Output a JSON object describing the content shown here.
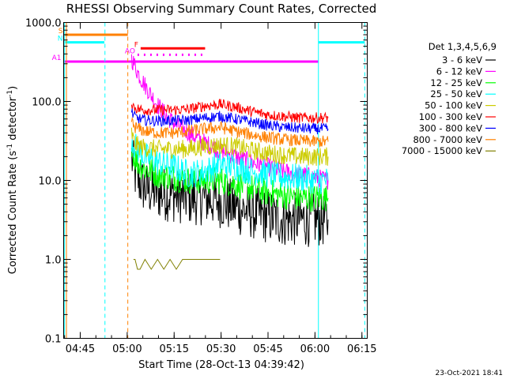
{
  "chart_data": {
    "type": "line",
    "title": "RHESSI Observing Summary Count Rates, Corrected",
    "xlabel": "Start Time (28-Oct-13 04:39:42)",
    "ylabel": "Corrected Count Rate (s",
    "ylabel_sup1": "-1",
    "ylabel_mid": " detector",
    "ylabel_sup2": "-1",
    "ylabel_end": ")",
    "footer": "23-Oct-2021 18:41",
    "x_unit": "minutes after 04:39:42",
    "xlim": [
      0,
      97
    ],
    "ylim": [
      0.1,
      1000
    ],
    "yscale": "log",
    "x_ticks": [
      {
        "x": 5.3,
        "label": "04:45"
      },
      {
        "x": 20.3,
        "label": "05:00"
      },
      {
        "x": 35.3,
        "label": "05:15"
      },
      {
        "x": 50.3,
        "label": "05:30"
      },
      {
        "x": 65.3,
        "label": "05:45"
      },
      {
        "x": 80.3,
        "label": "06:00"
      },
      {
        "x": 95.3,
        "label": "06:15"
      }
    ],
    "y_ticks": [
      {
        "y": 1000,
        "label": "1000.0"
      },
      {
        "y": 100,
        "label": "100.0"
      },
      {
        "y": 10,
        "label": "10.0"
      },
      {
        "y": 1,
        "label": "1.0"
      },
      {
        "y": 0.1,
        "label": "0.1"
      }
    ],
    "legend": {
      "header": "Det 1,3,4,5,6,9",
      "placement": "right",
      "entries": [
        {
          "label": "3 - 6 keV",
          "color": "#000000"
        },
        {
          "label": "6 - 12 keV",
          "color": "#ff00ff"
        },
        {
          "label": "12 - 25 keV",
          "color": "#00ff00"
        },
        {
          "label": "25 - 50 keV",
          "color": "#00ffff"
        },
        {
          "label": "50 - 100 keV",
          "color": "#cccc00"
        },
        {
          "label": "100 - 300 keV",
          "color": "#ff0000"
        },
        {
          "label": "300 - 800 keV",
          "color": "#0000ff"
        },
        {
          "label": "800 - 7000 keV",
          "color": "#ff8000"
        },
        {
          "label": "7000 - 15000 keV",
          "color": "#808000"
        }
      ]
    },
    "series": [
      {
        "name": "3 - 6 keV",
        "color": "#000000",
        "x": [
          21.7,
          22.5,
          24,
          26,
          30,
          35,
          40,
          45,
          50,
          55,
          60,
          65,
          70,
          75,
          80,
          84.5
        ],
        "y": [
          20,
          13,
          10,
          8,
          7,
          6.5,
          6,
          6,
          5.5,
          4.5,
          4,
          3.5,
          3.2,
          3.2,
          3.2,
          3.2
        ]
      },
      {
        "name": "6 - 12 keV",
        "color": "#ff00ff",
        "x": [
          21.7,
          22.5,
          24,
          26,
          28,
          30,
          33,
          36,
          40,
          45,
          50,
          55,
          60,
          65,
          70,
          75,
          80,
          84.5
        ],
        "y": [
          350,
          300,
          220,
          160,
          120,
          90,
          65,
          50,
          40,
          30,
          24,
          20,
          17,
          15,
          13,
          12,
          11,
          10
        ]
      },
      {
        "name": "12 - 25 keV",
        "color": "#00ff00",
        "x": [
          21.7,
          22.5,
          24,
          26,
          30,
          35,
          40,
          45,
          50,
          55,
          60,
          65,
          70,
          75,
          80,
          84.5
        ],
        "y": [
          30,
          20,
          16,
          14,
          12,
          11,
          10,
          10,
          10,
          9,
          8,
          7,
          6.5,
          6,
          6,
          6
        ]
      },
      {
        "name": "25 - 50 keV",
        "color": "#00ffff",
        "x": [
          21.7,
          22.5,
          24,
          26,
          30,
          35,
          40,
          45,
          50,
          55,
          60,
          65,
          70,
          75,
          80,
          84.5
        ],
        "y": [
          35,
          28,
          24,
          20,
          17,
          15,
          12,
          13,
          16,
          15,
          13,
          12,
          11,
          11,
          10,
          10
        ]
      },
      {
        "name": "50 - 100 keV",
        "color": "#cccc00",
        "x": [
          21.7,
          22.5,
          24,
          26,
          30,
          35,
          40,
          45,
          50,
          55,
          60,
          65,
          70,
          75,
          80,
          84.5
        ],
        "y": [
          40,
          30,
          27,
          26,
          25,
          25,
          25,
          27,
          28,
          27,
          24,
          22,
          21,
          20,
          20,
          20
        ]
      },
      {
        "name": "100 - 300 keV",
        "color": "#ff0000",
        "x": [
          21.7,
          22.5,
          24,
          26,
          30,
          35,
          40,
          45,
          50,
          55,
          60,
          65,
          70,
          75,
          80,
          84.5
        ],
        "y": [
          95,
          85,
          80,
          78,
          78,
          78,
          80,
          88,
          92,
          85,
          75,
          68,
          65,
          62,
          62,
          62
        ]
      },
      {
        "name": "300 - 800 keV",
        "color": "#0000ff",
        "x": [
          21.7,
          22.5,
          24,
          26,
          30,
          35,
          40,
          45,
          50,
          55,
          60,
          65,
          70,
          75,
          80,
          84.5
        ],
        "y": [
          75,
          65,
          60,
          58,
          57,
          57,
          58,
          62,
          65,
          60,
          55,
          50,
          47,
          46,
          45,
          45
        ]
      },
      {
        "name": "800 - 7000 keV",
        "color": "#ff8000",
        "x": [
          21.7,
          22.5,
          24,
          26,
          30,
          35,
          40,
          45,
          50,
          55,
          60,
          65,
          70,
          75,
          80,
          84.5
        ],
        "y": [
          55,
          48,
          45,
          42,
          40,
          40,
          42,
          45,
          47,
          42,
          38,
          35,
          33,
          32,
          31,
          31
        ]
      },
      {
        "name": "7000 - 15000 keV",
        "color": "#808000",
        "x": [
          22.3,
          22.8,
          23.6,
          24.4,
          26,
          28,
          30,
          32,
          34,
          36,
          38,
          40,
          43,
          46,
          50
        ],
        "y": [
          1,
          1,
          0.75,
          0.75,
          1,
          0.75,
          1,
          0.75,
          1,
          0.75,
          1,
          1,
          1,
          1,
          1
        ]
      }
    ],
    "bars": [
      {
        "label": "S",
        "color": "#ff8000",
        "x": [
          0.5,
          20.5
        ],
        "y": 700
      },
      {
        "label": "N",
        "color": "#00ffff",
        "x": [
          0.5,
          13
        ],
        "y": 560
      },
      {
        "label": "",
        "color": "#00ffff",
        "x": [
          81.4,
          96.2
        ],
        "y": 560
      },
      {
        "label": "F",
        "color": "#ff0000",
        "x": [
          24.6,
          45.2
        ],
        "y": 470
      },
      {
        "label": "AO",
        "color": "#ff00ff",
        "x": [
          23.6,
          44.5
        ],
        "y": 390,
        "dotted": true
      },
      {
        "label": "A1",
        "color": "#ff00ff",
        "x": [
          0,
          81.4
        ],
        "y": 320
      }
    ],
    "vlines": [
      {
        "x": 0.3,
        "color": "#00ffff",
        "dashed": false
      },
      {
        "x": 0.9,
        "color": "#ff8000",
        "dashed": false
      },
      {
        "x": 13.2,
        "color": "#00ffff",
        "dashed": true
      },
      {
        "x": 20.5,
        "color": "#ff8000",
        "dashed": true
      },
      {
        "x": 81.4,
        "color": "#00ffff",
        "dashed": false
      },
      {
        "x": 96.2,
        "color": "#00ffff",
        "dashed": true
      }
    ]
  }
}
